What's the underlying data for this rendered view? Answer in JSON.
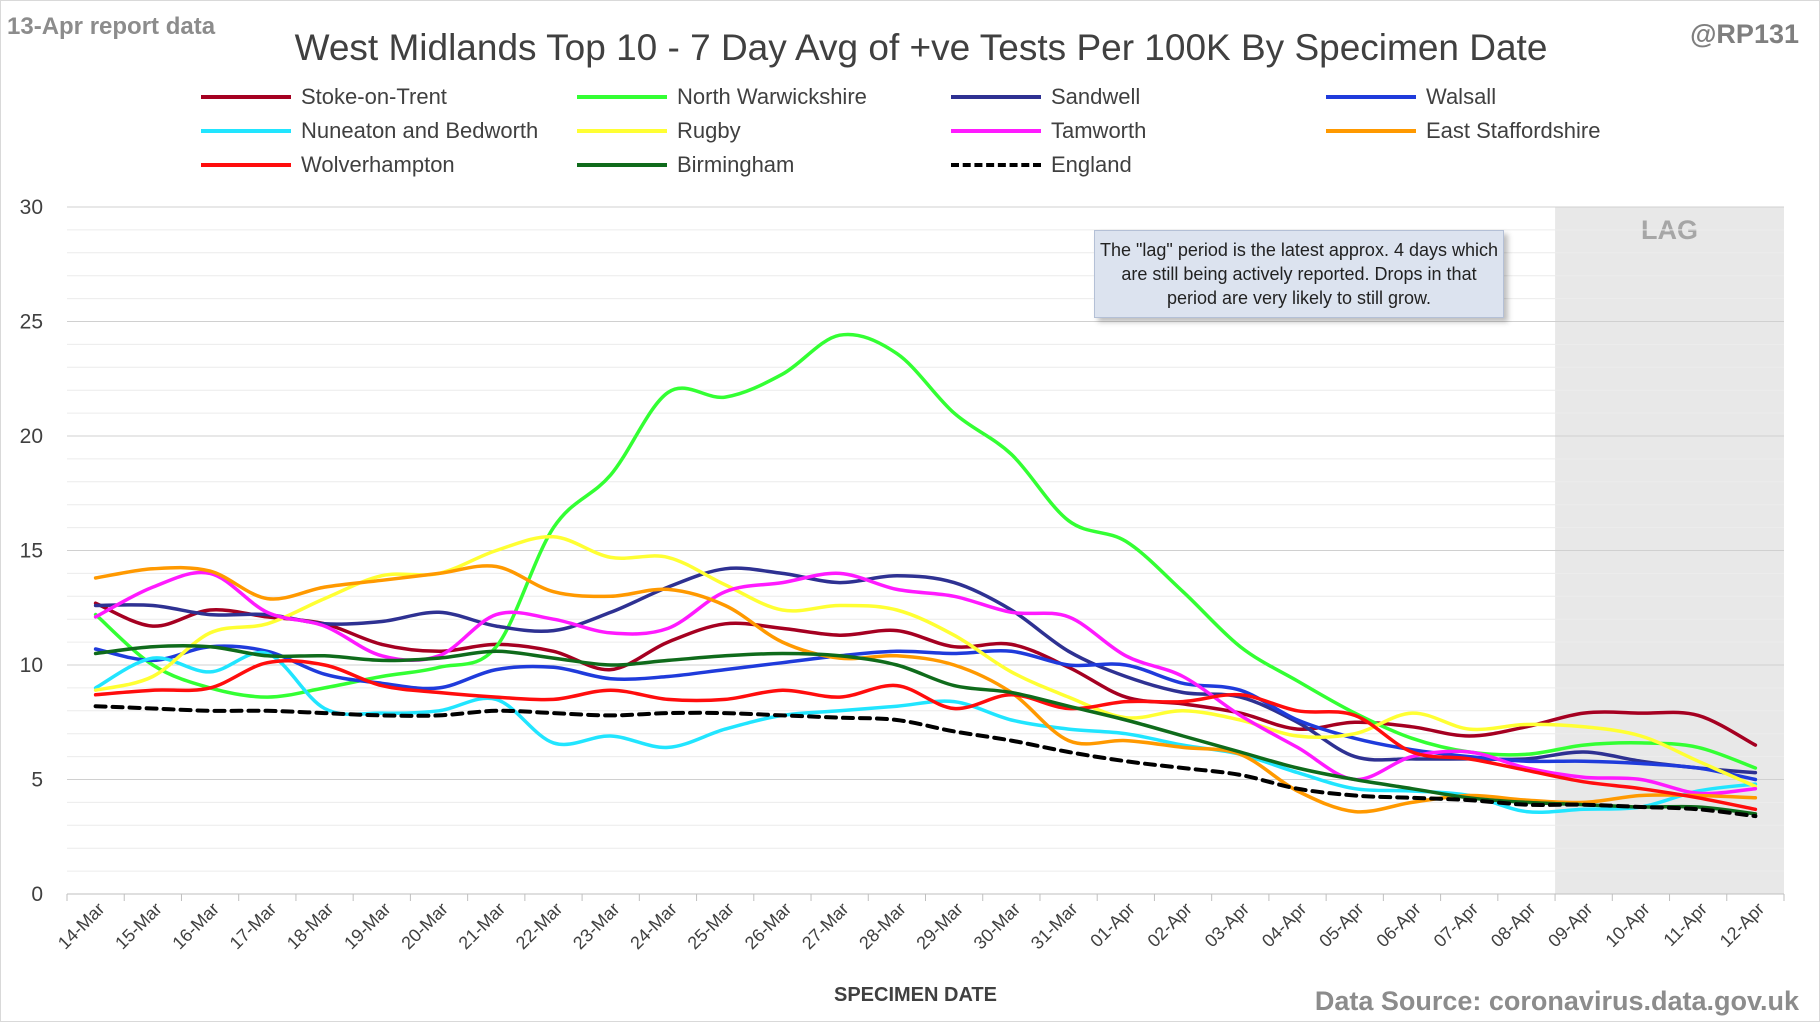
{
  "header": {
    "report_note": "13-Apr report data",
    "handle": "@RP131",
    "source": "Data Source: coronavirus.data.gov.uk"
  },
  "annotation": "The \"lag\" period is the latest approx. 4 days which are still being actively reported.  Drops in that period are very likely to still grow.",
  "chart_data": {
    "type": "line",
    "title": "West Midlands Top 10 - 7 Day Avg of +ve Tests Per 100K By Specimen Date",
    "xlabel": "SPECIMEN DATE",
    "ylabel": "",
    "ylim": [
      0,
      30
    ],
    "yticks": [
      0,
      5,
      10,
      15,
      20,
      25,
      30
    ],
    "grid": "horizontal",
    "legend_position": "top",
    "lag_label": "LAG",
    "lag_range": [
      "09-Apr",
      "12-Apr"
    ],
    "lag_color": "#e8e8e8",
    "x": [
      "14-Mar",
      "15-Mar",
      "16-Mar",
      "17-Mar",
      "18-Mar",
      "19-Mar",
      "20-Mar",
      "21-Mar",
      "22-Mar",
      "23-Mar",
      "24-Mar",
      "25-Mar",
      "26-Mar",
      "27-Mar",
      "28-Mar",
      "29-Mar",
      "30-Mar",
      "31-Mar",
      "01-Apr",
      "02-Apr",
      "03-Apr",
      "04-Apr",
      "05-Apr",
      "06-Apr",
      "07-Apr",
      "08-Apr",
      "09-Apr",
      "10-Apr",
      "11-Apr",
      "12-Apr"
    ],
    "series": [
      {
        "name": "Stoke-on-Trent",
        "color": "#a50021",
        "dash": false,
        "values": [
          12.7,
          11.7,
          12.4,
          12.1,
          11.8,
          10.9,
          10.6,
          10.9,
          10.6,
          9.8,
          11.0,
          11.8,
          11.6,
          11.3,
          11.5,
          10.8,
          10.9,
          9.9,
          8.6,
          8.3,
          7.9,
          7.2,
          7.5,
          7.3,
          6.9,
          7.3,
          7.9,
          7.9,
          7.8,
          6.5
        ]
      },
      {
        "name": "North Warwickshire",
        "color": "#33ff33",
        "dash": false,
        "values": [
          12.2,
          10.0,
          9.0,
          8.6,
          9.0,
          9.5,
          9.9,
          10.8,
          16.0,
          18.3,
          21.9,
          21.7,
          22.7,
          24.4,
          23.6,
          21.0,
          19.2,
          16.3,
          15.4,
          13.2,
          10.8,
          9.3,
          7.9,
          6.8,
          6.2,
          6.1,
          6.5,
          6.6,
          6.4,
          5.5
        ]
      },
      {
        "name": "Sandwell",
        "color": "#2e3192",
        "dash": false,
        "values": [
          12.6,
          12.6,
          12.2,
          12.2,
          11.8,
          11.9,
          12.3,
          11.7,
          11.5,
          12.3,
          13.4,
          14.2,
          14.0,
          13.6,
          13.9,
          13.6,
          12.4,
          10.6,
          9.5,
          8.8,
          8.6,
          7.5,
          6.0,
          5.9,
          5.9,
          5.9,
          6.2,
          5.8,
          5.5,
          5.3
        ]
      },
      {
        "name": "Walsall",
        "color": "#1f3bdb",
        "dash": false,
        "values": [
          10.7,
          10.2,
          10.8,
          10.6,
          9.6,
          9.2,
          9.0,
          9.8,
          9.9,
          9.4,
          9.5,
          9.8,
          10.1,
          10.4,
          10.6,
          10.5,
          10.6,
          10.0,
          10.0,
          9.2,
          8.9,
          7.6,
          6.8,
          6.3,
          6.0,
          5.8,
          5.8,
          5.7,
          5.5,
          5.0
        ]
      },
      {
        "name": "Nuneaton and Bedworth",
        "color": "#21e5ff",
        "dash": false,
        "values": [
          9.0,
          10.3,
          9.7,
          10.5,
          8.1,
          7.9,
          8.0,
          8.5,
          6.6,
          6.9,
          6.4,
          7.2,
          7.8,
          8.0,
          8.2,
          8.4,
          7.6,
          7.2,
          7.0,
          6.5,
          6.1,
          5.3,
          4.6,
          4.5,
          4.3,
          3.6,
          3.7,
          3.8,
          4.5,
          4.8
        ]
      },
      {
        "name": "Rugby",
        "color": "#ffff33",
        "dash": false,
        "values": [
          8.9,
          9.5,
          11.4,
          11.8,
          12.9,
          13.9,
          14.0,
          15.0,
          15.6,
          14.7,
          14.7,
          13.5,
          12.4,
          12.6,
          12.4,
          11.3,
          9.7,
          8.6,
          7.7,
          8.0,
          7.6,
          6.9,
          7.0,
          7.9,
          7.2,
          7.4,
          7.3,
          6.9,
          5.8,
          4.7
        ]
      },
      {
        "name": "Tamworth",
        "color": "#ff1aff",
        "dash": false,
        "values": [
          12.1,
          13.4,
          14.0,
          12.3,
          11.7,
          10.4,
          10.4,
          12.2,
          12.0,
          11.4,
          11.6,
          13.2,
          13.6,
          14.0,
          13.3,
          13.0,
          12.3,
          12.1,
          10.4,
          9.5,
          7.8,
          6.4,
          5.0,
          6.0,
          6.2,
          5.5,
          5.1,
          5.0,
          4.4,
          4.6
        ]
      },
      {
        "name": "East Staffordshire",
        "color": "#ff9900",
        "dash": false,
        "values": [
          13.8,
          14.2,
          14.1,
          12.9,
          13.4,
          13.7,
          14.0,
          14.3,
          13.2,
          13.0,
          13.3,
          12.6,
          11.0,
          10.3,
          10.4,
          10.0,
          8.8,
          6.7,
          6.7,
          6.4,
          6.1,
          4.5,
          3.6,
          4.0,
          4.3,
          4.1,
          4.0,
          4.3,
          4.3,
          4.2
        ]
      },
      {
        "name": "Wolverhampton",
        "color": "#ff0d0d",
        "dash": false,
        "values": [
          8.7,
          8.9,
          9.0,
          10.1,
          10.0,
          9.1,
          8.8,
          8.6,
          8.5,
          8.9,
          8.5,
          8.5,
          8.9,
          8.6,
          9.1,
          8.1,
          8.7,
          8.1,
          8.4,
          8.4,
          8.7,
          8.0,
          7.8,
          6.2,
          5.9,
          5.4,
          4.9,
          4.6,
          4.2,
          3.7
        ]
      },
      {
        "name": "Birmingham",
        "color": "#0f6b1b",
        "dash": false,
        "values": [
          10.5,
          10.8,
          10.8,
          10.4,
          10.4,
          10.2,
          10.3,
          10.6,
          10.3,
          10.0,
          10.2,
          10.4,
          10.5,
          10.4,
          10.0,
          9.1,
          8.8,
          8.2,
          7.6,
          6.9,
          6.2,
          5.5,
          5.0,
          4.6,
          4.2,
          4.0,
          3.9,
          3.8,
          3.8,
          3.5
        ]
      },
      {
        "name": "England",
        "color": "#000000",
        "dash": true,
        "values": [
          8.2,
          8.1,
          8.0,
          8.0,
          7.9,
          7.8,
          7.8,
          8.0,
          7.9,
          7.8,
          7.9,
          7.9,
          7.8,
          7.7,
          7.6,
          7.1,
          6.7,
          6.2,
          5.8,
          5.5,
          5.2,
          4.6,
          4.3,
          4.2,
          4.1,
          3.9,
          3.9,
          3.8,
          3.7,
          3.4
        ]
      }
    ]
  }
}
